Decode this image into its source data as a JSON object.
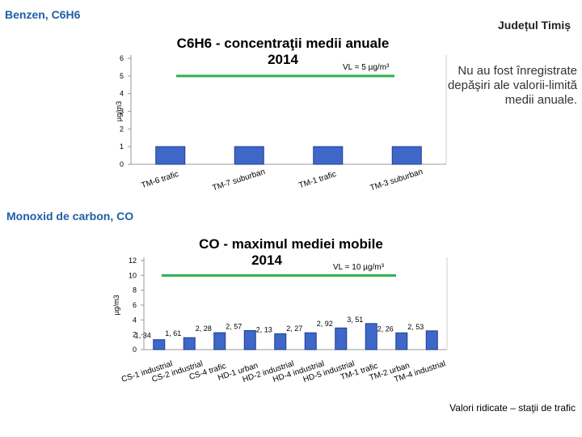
{
  "header": {
    "left": "Benzen, C6H6",
    "right": "Județul Timiș"
  },
  "notes": {
    "c6h6": "Nu au fost înregistrate depăşiri ale valorii-limită medii anuale."
  },
  "section2": "Monoxid de carbon, CO",
  "footer": "Valori ridicate – staţii de trafic",
  "colors": {
    "bar": "#3f67c9",
    "limit_line": "#2db04a",
    "accent": "#1f5fa8",
    "plot_edge": "#a8a8a8"
  },
  "chart_data": [
    {
      "type": "bar",
      "title": "C6H6 - concentraţii medii anuale",
      "subtitle": "2014",
      "ylabel": "µg/m3",
      "limit_label": "VL = 5 µg/m³",
      "limit_value": 5,
      "ylim": [
        0,
        6
      ],
      "yticks": [
        "0",
        "1",
        "2",
        "3",
        "4",
        "5",
        "6"
      ],
      "categories": [
        "TM-6 trafic",
        "TM-7 suburban",
        "TM-1 trafic",
        "TM-3 suburban"
      ],
      "values": [
        1,
        1,
        1,
        1
      ]
    },
    {
      "type": "bar",
      "title": "CO - maximul mediei mobile",
      "subtitle": "2014",
      "ylabel": "µg/m3",
      "limit_label": "VL = 10 µg/m³",
      "limit_value": 10,
      "ylim": [
        0,
        12
      ],
      "yticks": [
        "0",
        "2",
        "4",
        "6",
        "8",
        "10",
        "12"
      ],
      "categories": [
        "CS-1 industrial",
        "CS-2 industrial",
        "CS-4 trafic",
        "HD-1 urban",
        "HD-2 industrial",
        "HD-4 industrial",
        "HD-5 industrial",
        "TM-1 trafic",
        "TM-2 urban",
        "TM-4 industrial"
      ],
      "values": [
        1.34,
        1.61,
        2.28,
        2.57,
        2.13,
        2.27,
        2.92,
        3.51,
        2.26,
        2.53
      ],
      "value_labels": [
        "1, 34",
        "1, 61",
        "2, 28",
        "2, 57",
        "2, 13",
        "2, 27",
        "2, 92",
        "3, 51",
        "2, 26",
        "2, 53"
      ]
    }
  ]
}
